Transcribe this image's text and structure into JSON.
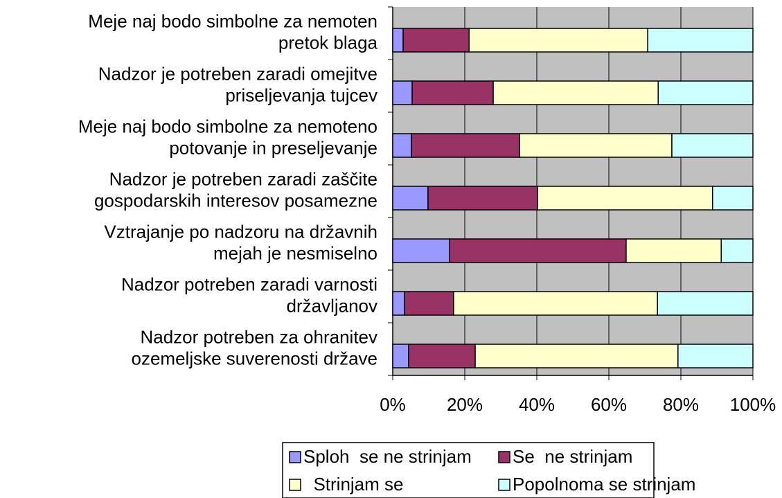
{
  "chart_data": {
    "type": "stacked_barh",
    "categories": [
      "Meje naj bodo simbolne za nemoten\npretok blaga",
      "Nadzor je potreben zaradi omejitve\npriseljevanja tujcev",
      "Meje naj bodo simbolne za nemoteno\npotovanje in preseljevanje",
      "Nadzor je potreben zaradi zaščite\ngospodarskih interesov posamezne",
      "Vztrajanje po nadzoru na državnih\nmejah je nesmiselno",
      "Nadzor potreben zaradi varnosti\ndržavljanov",
      "Nadzor potreben za ohranitev\nozemeljske suverenosti države"
    ],
    "series": [
      {
        "name": "Sploh  se ne strinjam",
        "color": "#9999ff",
        "values": [
          2.9,
          5.4,
          5.2,
          9.8,
          15.8,
          3.3,
          4.4
        ]
      },
      {
        "name": "Se  ne strinjam",
        "color": "#993366",
        "values": [
          18.3,
          22.5,
          30.0,
          30.4,
          49.0,
          13.6,
          18.5
        ]
      },
      {
        "name": "  Strinjam se",
        "color": "#ffffcc",
        "values": [
          49.6,
          45.8,
          42.3,
          48.6,
          26.4,
          56.6,
          56.3
        ]
      },
      {
        "name": "Popolnoma se strinjam",
        "color": "#ccffff",
        "values": [
          29.2,
          26.3,
          22.5,
          11.2,
          8.8,
          26.5,
          20.8
        ]
      }
    ],
    "xlim": [
      0,
      100
    ],
    "xticks": [
      {
        "value": 0,
        "label": "0%"
      },
      {
        "value": 20,
        "label": "20%"
      },
      {
        "value": 40,
        "label": "40%"
      },
      {
        "value": 60,
        "label": "60%"
      },
      {
        "value": 80,
        "label": "80%"
      },
      {
        "value": 100,
        "label": "100%"
      }
    ],
    "grid": true,
    "plot_background": "#c0c0c0",
    "legend": "bottom"
  }
}
